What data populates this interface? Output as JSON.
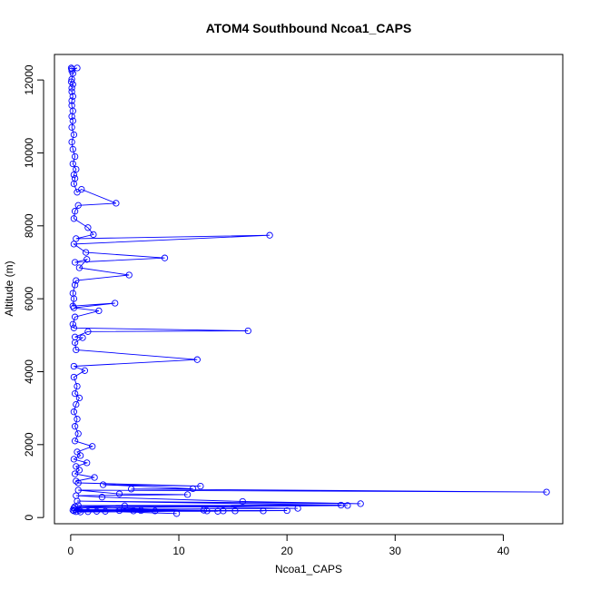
{
  "chart_data": {
    "type": "line",
    "title": "ATOM4 Southbound Ncoa1_CAPS",
    "xlabel": "Ncoa1_CAPS",
    "ylabel": "Altitude (m)",
    "xlim": [
      -1.5,
      45.5
    ],
    "ylim": [
      -170,
      12700
    ],
    "x_ticks": [
      0,
      10,
      20,
      30,
      40
    ],
    "y_ticks": [
      0,
      2000,
      4000,
      6000,
      8000,
      10000,
      12000
    ],
    "grid": false,
    "line_color": "#0000ff",
    "marker": "open-circle",
    "series": [
      {
        "values_xy": [
          [
            0.05,
            12330
          ],
          [
            0.1,
            12300
          ],
          [
            0.6,
            12330
          ],
          [
            0.1,
            12250
          ],
          [
            0.2,
            12180
          ],
          [
            0.1,
            12020
          ],
          [
            0.05,
            11950
          ],
          [
            0.2,
            11880
          ],
          [
            0.1,
            11780
          ],
          [
            0.1,
            11680
          ],
          [
            0.2,
            11550
          ],
          [
            0.1,
            11430
          ],
          [
            0.1,
            11300
          ],
          [
            0.2,
            11150
          ],
          [
            0.1,
            11000
          ],
          [
            0.2,
            10880
          ],
          [
            0.1,
            10700
          ],
          [
            0.3,
            10500
          ],
          [
            0.1,
            10300
          ],
          [
            0.2,
            10100
          ],
          [
            0.4,
            9900
          ],
          [
            0.2,
            9700
          ],
          [
            0.5,
            9550
          ],
          [
            0.3,
            9400
          ],
          [
            0.4,
            9300
          ],
          [
            0.3,
            9150
          ],
          [
            0.6,
            8920
          ],
          [
            1.0,
            9000
          ],
          [
            4.2,
            8620
          ],
          [
            0.7,
            8560
          ],
          [
            0.4,
            8400
          ],
          [
            0.3,
            8200
          ],
          [
            1.6,
            7950
          ],
          [
            2.1,
            7760
          ],
          [
            0.5,
            7650
          ],
          [
            18.4,
            7740
          ],
          [
            0.3,
            7500
          ],
          [
            1.4,
            7270
          ],
          [
            8.7,
            7120
          ],
          [
            0.4,
            7000
          ],
          [
            1.5,
            7080
          ],
          [
            0.8,
            6850
          ],
          [
            5.4,
            6650
          ],
          [
            0.5,
            6500
          ],
          [
            0.4,
            6380
          ],
          [
            0.2,
            6150
          ],
          [
            0.3,
            6000
          ],
          [
            0.2,
            5800
          ],
          [
            4.1,
            5880
          ],
          [
            0.3,
            5750
          ],
          [
            2.6,
            5670
          ],
          [
            0.4,
            5500
          ],
          [
            0.2,
            5300
          ],
          [
            0.3,
            5200
          ],
          [
            16.4,
            5120
          ],
          [
            1.6,
            5100
          ],
          [
            0.4,
            4950
          ],
          [
            1.1,
            4930
          ],
          [
            0.4,
            4800
          ],
          [
            0.5,
            4600
          ],
          [
            11.7,
            4330
          ],
          [
            0.3,
            4150
          ],
          [
            1.3,
            4030
          ],
          [
            0.3,
            3850
          ],
          [
            0.6,
            3600
          ],
          [
            0.4,
            3400
          ],
          [
            0.8,
            3280
          ],
          [
            0.5,
            3100
          ],
          [
            0.3,
            2900
          ],
          [
            0.6,
            2700
          ],
          [
            0.4,
            2500
          ],
          [
            0.7,
            2300
          ],
          [
            0.4,
            2100
          ],
          [
            2.0,
            1950
          ],
          [
            0.6,
            1800
          ],
          [
            0.9,
            1700
          ],
          [
            0.3,
            1600
          ],
          [
            1.5,
            1500
          ],
          [
            0.5,
            1400
          ],
          [
            0.8,
            1300
          ],
          [
            0.4,
            1200
          ],
          [
            2.2,
            1100
          ],
          [
            0.5,
            1000
          ],
          [
            0.7,
            950
          ],
          [
            12.0,
            860
          ],
          [
            3.0,
            900
          ],
          [
            11.3,
            790
          ],
          [
            5.6,
            780
          ],
          [
            44.0,
            700
          ],
          [
            0.7,
            750
          ],
          [
            4.5,
            650
          ],
          [
            10.8,
            630
          ],
          [
            0.5,
            600
          ],
          [
            2.9,
            560
          ],
          [
            15.9,
            440
          ],
          [
            26.8,
            380
          ],
          [
            0.6,
            450
          ],
          [
            25.0,
            340
          ],
          [
            0.7,
            330
          ],
          [
            5.0,
            320
          ],
          [
            21.0,
            250
          ],
          [
            0.4,
            220
          ],
          [
            12.3,
            200
          ],
          [
            0.3,
            180
          ],
          [
            17.8,
            180
          ],
          [
            0.8,
            200
          ],
          [
            9.8,
            110
          ],
          [
            3.2,
            170
          ],
          [
            15.2,
            180
          ],
          [
            7.8,
            180
          ],
          [
            1.6,
            160
          ],
          [
            20.0,
            190
          ],
          [
            4.5,
            190
          ],
          [
            6.5,
            190
          ],
          [
            0.5,
            160
          ],
          [
            14.1,
            180
          ],
          [
            0.9,
            150
          ],
          [
            12.6,
            180
          ],
          [
            2.4,
            170
          ],
          [
            0.3,
            260
          ],
          [
            25.6,
            330
          ],
          [
            0.4,
            300
          ],
          [
            13.6,
            170
          ],
          [
            5.8,
            180
          ],
          [
            0.2,
            200
          ]
        ]
      }
    ]
  }
}
